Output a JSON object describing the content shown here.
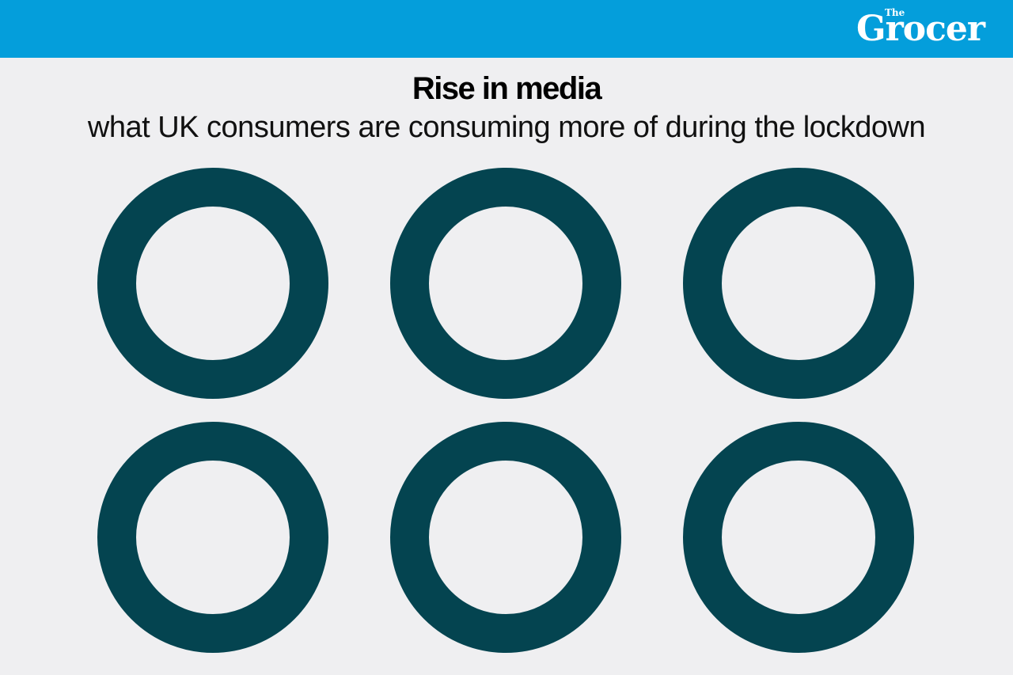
{
  "header": {
    "brand_small": "The",
    "brand_big": "Grocer",
    "bar_color": "#049edb"
  },
  "title": "Rise in media",
  "subtitle": "what UK consumers are consuming more of during the lockdown",
  "chart_data": {
    "type": "pie",
    "variant": "donut",
    "ring_color": "#044450",
    "accent_color": "#08767d",
    "grid": false,
    "legend": "none",
    "donuts": [
      {
        "label": "",
        "value": null
      },
      {
        "label": "",
        "value": null
      },
      {
        "label": "",
        "value": null
      },
      {
        "label": "",
        "value": null
      },
      {
        "label": "",
        "value": null
      },
      {
        "label": "",
        "value": null
      }
    ]
  }
}
